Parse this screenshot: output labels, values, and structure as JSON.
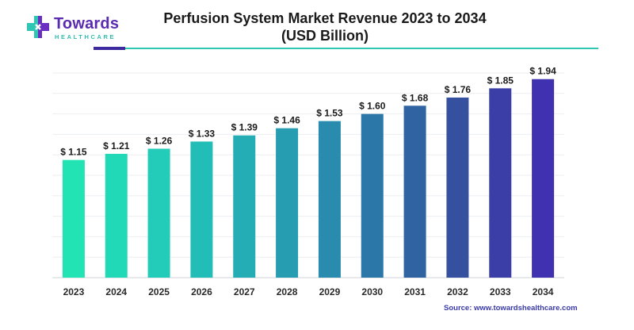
{
  "logo": {
    "word": "Towards",
    "sub": "HEALTHCARE",
    "colors": {
      "word": "#5a2bb0",
      "sub": "#2fbcae",
      "mark_left": "#2fc7b4",
      "mark_right": "#6a2fc0"
    }
  },
  "title_line1": "Perfusion System Market Revenue 2023 to 2034",
  "title_line2": "(USD Billion)",
  "source": "Source: www.towardshealthcare.com",
  "chart_data": {
    "type": "bar",
    "title": "Perfusion System Market Revenue 2023 to 2034 (USD Billion)",
    "categories": [
      "2023",
      "2024",
      "2025",
      "2026",
      "2027",
      "2028",
      "2029",
      "2030",
      "2031",
      "2032",
      "2033",
      "2034"
    ],
    "values": [
      1.15,
      1.21,
      1.26,
      1.33,
      1.39,
      1.46,
      1.53,
      1.6,
      1.68,
      1.76,
      1.85,
      1.94
    ],
    "labels": [
      "$ 1.15",
      "$ 1.21",
      "$ 1.26",
      "$ 1.33",
      "$ 1.39",
      "$ 1.46",
      "$ 1.53",
      "$ 1.60",
      "$ 1.68",
      "$ 1.76",
      "$ 1.85",
      "$ 1.94"
    ],
    "xlabel": "",
    "ylabel": "",
    "ylim": [
      0,
      2.0
    ],
    "grid": true,
    "legend": "none",
    "colors": [
      "#22e3b4",
      "#21d9b6",
      "#22ccb8",
      "#23bdb8",
      "#25adb6",
      "#279db2",
      "#298bad",
      "#2b77a7",
      "#2f63a1",
      "#34509f",
      "#3a3ea6",
      "#4031b0"
    ]
  }
}
